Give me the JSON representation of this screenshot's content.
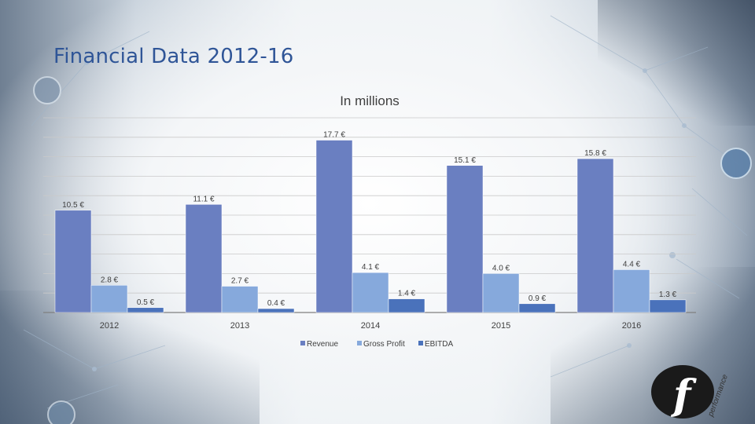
{
  "slide": {
    "title": "Financial Data 2012-16"
  },
  "colors": {
    "revenue": "#6a7fc1",
    "gross_profit": "#86a9dc",
    "ebitda": "#4a72bb",
    "title": "#2f5597"
  },
  "logo": {
    "text": "performance",
    "letter": "f"
  },
  "chart_data": {
    "type": "bar",
    "title": "In millions",
    "categories": [
      "2012",
      "2013",
      "2014",
      "2015",
      "2016"
    ],
    "series": [
      {
        "name": "Revenue",
        "values": [
          10.5,
          11.1,
          17.7,
          15.1,
          15.8
        ],
        "labels": [
          "10.5 €",
          "11.1 €",
          "17.7 €",
          "15.1 €",
          "15.8 €"
        ]
      },
      {
        "name": "Gross Profit",
        "values": [
          2.8,
          2.7,
          4.1,
          4.0,
          4.4
        ],
        "labels": [
          "2.8 €",
          "2.7 €",
          "4.1 €",
          "4.0 €",
          "4.4 €"
        ]
      },
      {
        "name": "EBITDA",
        "values": [
          0.5,
          0.4,
          1.4,
          0.9,
          1.3
        ],
        "labels": [
          "0.5 €",
          "0.4 €",
          "1.4 €",
          "0.9 €",
          "1.3 €"
        ]
      }
    ],
    "ylim": [
      0,
      20
    ],
    "grid": true,
    "legend": "bottom"
  }
}
